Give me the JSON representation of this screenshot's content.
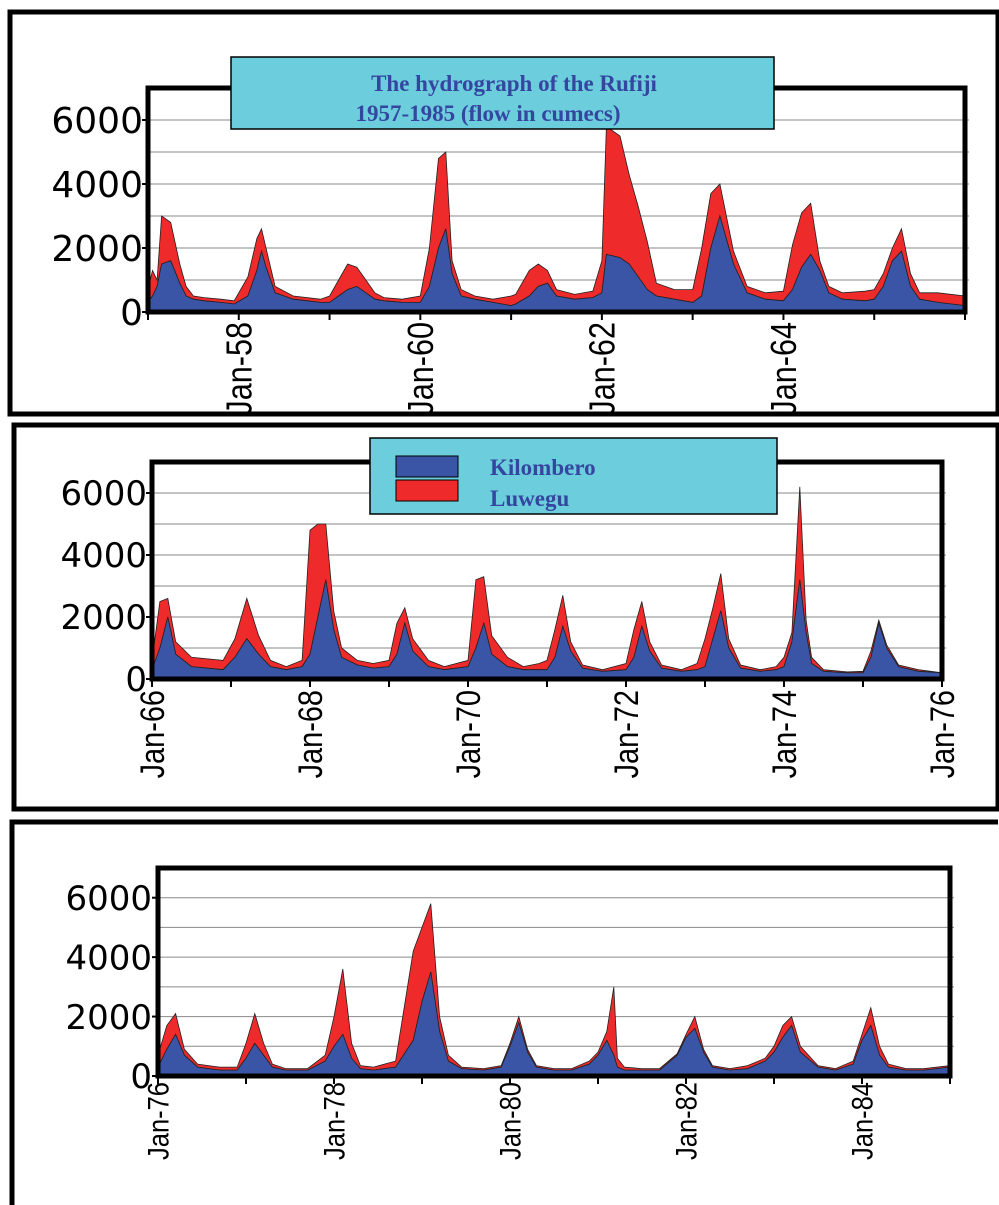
{
  "colors": {
    "kilombero": "#3a55a6",
    "luwegu": "#ee2a2a",
    "legend_bg": "#6ccedd",
    "frame": "#000000",
    "grid": "#8a8a8a",
    "title_text": "#3446a0"
  },
  "title": {
    "line1": "The hydrograph of the Rufiji",
    "line2": "1957-1985 (flow in cumecs)"
  },
  "legend": {
    "items": [
      {
        "label": "Kilombero",
        "color": "#3a55a6"
      },
      {
        "label": "Luwegu",
        "color": "#ee2a2a"
      }
    ]
  },
  "chart_data": [
    {
      "type": "area",
      "stacked": true,
      "x_unit": "year",
      "xlim": [
        1957.0,
        1966.0
      ],
      "ylim": [
        0,
        7000
      ],
      "y_ticks": [
        "0",
        "2000",
        "4000",
        "6000"
      ],
      "x_ticks": [
        {
          "x": 1958,
          "label": "Jan-58"
        },
        {
          "x": 1960,
          "label": "Jan-60"
        },
        {
          "x": 1962,
          "label": "Jan-62"
        },
        {
          "x": 1964,
          "label": "Jan-64"
        }
      ],
      "x": [
        1957.0,
        1957.05,
        1957.1,
        1957.15,
        1957.25,
        1957.35,
        1957.42,
        1957.5,
        1957.62,
        1957.8,
        1957.95,
        1958.1,
        1958.2,
        1958.25,
        1958.3,
        1958.4,
        1958.6,
        1958.9,
        1959.0,
        1959.1,
        1959.2,
        1959.3,
        1959.4,
        1959.5,
        1959.6,
        1959.8,
        1960.0,
        1960.1,
        1960.2,
        1960.28,
        1960.35,
        1960.45,
        1960.6,
        1960.8,
        1961.0,
        1961.05,
        1961.2,
        1961.3,
        1961.4,
        1961.5,
        1961.7,
        1961.9,
        1962.0,
        1962.05,
        1962.2,
        1962.3,
        1962.4,
        1962.5,
        1962.6,
        1962.8,
        1963.0,
        1963.1,
        1963.2,
        1963.3,
        1963.45,
        1963.6,
        1963.8,
        1964.0,
        1964.1,
        1964.2,
        1964.3,
        1964.4,
        1964.5,
        1964.65,
        1964.9,
        1965.0,
        1965.1,
        1965.2,
        1965.3,
        1965.4,
        1965.5,
        1965.7,
        1966.0
      ],
      "series": [
        {
          "name": "Kilombero",
          "values": [
            300,
            500,
            800,
            1500,
            1600,
            900,
            500,
            400,
            350,
            300,
            250,
            500,
            1300,
            1900,
            1400,
            600,
            400,
            300,
            300,
            500,
            700,
            800,
            600,
            400,
            350,
            300,
            300,
            800,
            2000,
            2600,
            1200,
            500,
            400,
            300,
            200,
            250,
            500,
            800,
            900,
            500,
            400,
            450,
            600,
            1800,
            1700,
            1500,
            1100,
            700,
            500,
            400,
            300,
            500,
            2000,
            3000,
            1500,
            600,
            400,
            350,
            700,
            1400,
            1800,
            1300,
            600,
            400,
            350,
            400,
            800,
            1600,
            1900,
            800,
            400,
            300,
            200
          ]
        },
        {
          "name": "Luwegu",
          "values": [
            400,
            800,
            200,
            1500,
            1200,
            600,
            300,
            100,
            100,
            100,
            100,
            600,
            1000,
            700,
            600,
            200,
            100,
            100,
            200,
            500,
            800,
            600,
            400,
            200,
            100,
            100,
            200,
            1200,
            2800,
            2400,
            400,
            200,
            100,
            100,
            300,
            300,
            800,
            700,
            400,
            200,
            150,
            200,
            1000,
            4000,
            3800,
            2800,
            2200,
            1500,
            400,
            300,
            400,
            1500,
            1700,
            1000,
            400,
            200,
            200,
            300,
            1400,
            1700,
            1600,
            300,
            200,
            200,
            300,
            300,
            400,
            400,
            700,
            400,
            200,
            300,
            300
          ]
        }
      ]
    },
    {
      "type": "area",
      "stacked": true,
      "x_unit": "year",
      "xlim": [
        1966.0,
        1976.0
      ],
      "ylim": [
        0,
        7000
      ],
      "y_ticks": [
        "0",
        "2000",
        "4000",
        "6000"
      ],
      "x_ticks": [
        {
          "x": 1966,
          "label": "Jan-66"
        },
        {
          "x": 1968,
          "label": "Jan-68"
        },
        {
          "x": 1970,
          "label": "Jan-70"
        },
        {
          "x": 1972,
          "label": "Jan-72"
        },
        {
          "x": 1974,
          "label": "Jan-74"
        },
        {
          "x": 1976,
          "label": "Jan-76"
        }
      ],
      "x": [
        1966.0,
        1966.1,
        1966.2,
        1966.3,
        1966.5,
        1966.9,
        1967.05,
        1967.2,
        1967.35,
        1967.5,
        1967.7,
        1967.9,
        1968.0,
        1968.1,
        1968.2,
        1968.3,
        1968.4,
        1968.6,
        1968.8,
        1969.0,
        1969.1,
        1969.2,
        1969.3,
        1969.5,
        1969.7,
        1970.0,
        1970.1,
        1970.2,
        1970.3,
        1970.5,
        1970.7,
        1970.9,
        1971.0,
        1971.1,
        1971.2,
        1971.3,
        1971.45,
        1971.7,
        1972.0,
        1972.1,
        1972.2,
        1972.3,
        1972.45,
        1972.7,
        1972.9,
        1973.0,
        1973.1,
        1973.2,
        1973.3,
        1973.45,
        1973.7,
        1973.9,
        1974.0,
        1974.1,
        1974.2,
        1974.28,
        1974.35,
        1974.5,
        1974.8,
        1975.0,
        1975.1,
        1975.2,
        1975.3,
        1975.45,
        1975.7,
        1976.0
      ],
      "series": [
        {
          "name": "Kilombero",
          "values": [
            300,
            1000,
            2000,
            800,
            400,
            300,
            700,
            1300,
            800,
            400,
            300,
            400,
            800,
            2000,
            3200,
            1600,
            700,
            450,
            350,
            400,
            800,
            1800,
            900,
            400,
            300,
            400,
            1000,
            1800,
            800,
            400,
            300,
            300,
            300,
            700,
            1700,
            900,
            350,
            250,
            300,
            700,
            1700,
            900,
            350,
            250,
            300,
            400,
            1300,
            2200,
            1000,
            350,
            250,
            300,
            400,
            1200,
            3200,
            1500,
            500,
            250,
            200,
            200,
            700,
            1800,
            1000,
            400,
            250,
            200
          ]
        },
        {
          "name": "Luwegu",
          "values": [
            300,
            1500,
            600,
            400,
            300,
            300,
            600,
            1300,
            600,
            200,
            100,
            200,
            4000,
            3000,
            1800,
            600,
            300,
            150,
            150,
            200,
            1000,
            500,
            400,
            200,
            100,
            200,
            2200,
            1500,
            600,
            300,
            100,
            200,
            300,
            900,
            1000,
            300,
            100,
            50,
            200,
            900,
            800,
            300,
            100,
            50,
            200,
            900,
            1000,
            1200,
            300,
            100,
            50,
            100,
            300,
            300,
            3000,
            400,
            200,
            50,
            30,
            50,
            200,
            100,
            100,
            50,
            50,
            0
          ]
        }
      ]
    },
    {
      "type": "area",
      "stacked": true,
      "x_unit": "year",
      "xlim": [
        1976.0,
        1985.0
      ],
      "ylim": [
        0,
        7000
      ],
      "y_ticks": [
        "0",
        "2000",
        "4000",
        "6000"
      ],
      "x_ticks": [
        {
          "x": 1976,
          "label": "Jan-76"
        },
        {
          "x": 1978,
          "label": "Jan-78"
        },
        {
          "x": 1980,
          "label": "Jan-80"
        },
        {
          "x": 1982,
          "label": "Jan-82"
        },
        {
          "x": 1984,
          "label": "Jan-84"
        }
      ],
      "x": [
        1976.0,
        1976.1,
        1976.2,
        1976.3,
        1976.45,
        1976.7,
        1976.9,
        1977.0,
        1977.1,
        1977.2,
        1977.3,
        1977.45,
        1977.7,
        1977.9,
        1978.0,
        1978.1,
        1978.2,
        1978.3,
        1978.45,
        1978.7,
        1978.9,
        1979.0,
        1979.1,
        1979.2,
        1979.3,
        1979.45,
        1979.7,
        1979.9,
        1980.0,
        1980.1,
        1980.2,
        1980.3,
        1980.5,
        1980.7,
        1980.9,
        1981.0,
        1981.1,
        1981.18,
        1981.22,
        1981.3,
        1981.5,
        1981.7,
        1981.9,
        1982.0,
        1982.1,
        1982.2,
        1982.3,
        1982.5,
        1982.7,
        1982.9,
        1983.0,
        1983.1,
        1983.2,
        1983.3,
        1983.5,
        1983.7,
        1983.9,
        1984.0,
        1984.1,
        1984.2,
        1984.3,
        1984.5,
        1984.7,
        1985.0
      ],
      "series": [
        {
          "name": "Kilombero",
          "values": [
            300,
            900,
            1400,
            700,
            300,
            200,
            200,
            600,
            1100,
            700,
            300,
            200,
            200,
            500,
            1000,
            1400,
            600,
            250,
            200,
            300,
            1200,
            2500,
            3500,
            1500,
            500,
            250,
            200,
            300,
            1000,
            1800,
            800,
            300,
            200,
            200,
            400,
            700,
            1200,
            700,
            300,
            200,
            200,
            200,
            700,
            1300,
            1600,
            800,
            300,
            200,
            250,
            500,
            800,
            1300,
            1700,
            800,
            300,
            200,
            400,
            1200,
            1700,
            700,
            300,
            200,
            200,
            300
          ]
        },
        {
          "name": "Luwegu",
          "values": [
            400,
            800,
            700,
            200,
            100,
            100,
            100,
            500,
            1000,
            400,
            100,
            50,
            50,
            200,
            1000,
            2200,
            500,
            100,
            100,
            200,
            3000,
            2500,
            2300,
            500,
            200,
            50,
            50,
            50,
            100,
            200,
            100,
            50,
            50,
            50,
            100,
            100,
            300,
            2300,
            300,
            100,
            50,
            50,
            50,
            100,
            400,
            100,
            50,
            50,
            100,
            100,
            200,
            400,
            300,
            200,
            50,
            50,
            100,
            200,
            600,
            300,
            100,
            50,
            50,
            50
          ]
        }
      ]
    }
  ]
}
